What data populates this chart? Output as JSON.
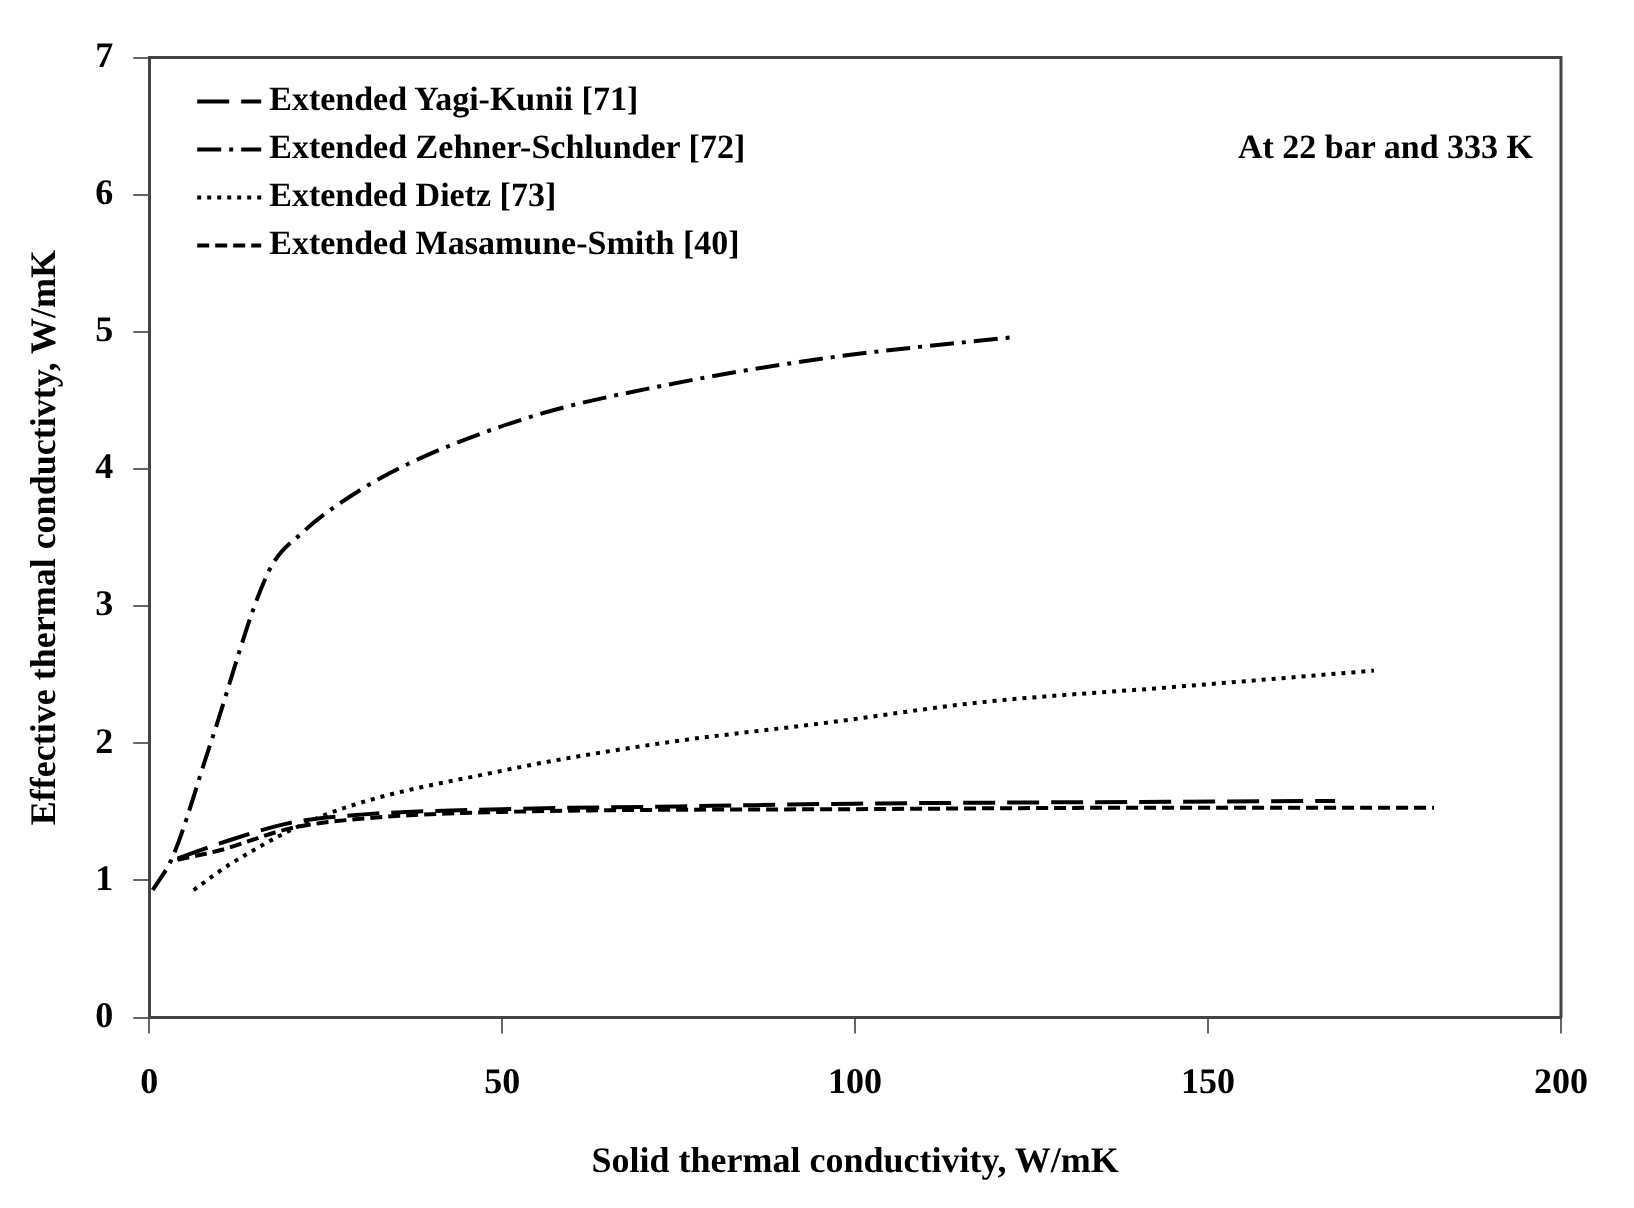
{
  "chart_data": {
    "type": "line",
    "xlabel": "Solid thermal conductivity, W/mK",
    "ylabel": "Effective thermal conductivty, W/mK",
    "xlim": [
      0,
      200
    ],
    "xticks": [
      0,
      50,
      100,
      150,
      200
    ],
    "ylim": [
      0,
      7
    ],
    "yticks": [
      0,
      1,
      2,
      3,
      4,
      5,
      6,
      7
    ],
    "grid": false,
    "legend": "top left",
    "marker": "none",
    "annotations": [
      "At 22 bar and 333 K"
    ],
    "series": [
      {
        "name": "Extended Yagi-Kunii [71]",
        "color": "#000000",
        "line_style": "dashed",
        "x": [
          4,
          10,
          20,
          30,
          50,
          75,
          100,
          130,
          168
        ],
        "values": [
          1.16,
          1.27,
          1.42,
          1.48,
          1.52,
          1.54,
          1.56,
          1.57,
          1.58
        ]
      },
      {
        "name": "Extended Zehner-Schlunder [72]",
        "color": "#000000",
        "line_style": "dashed",
        "x": [
          0.5,
          3.3,
          8.7,
          16.9,
          22,
          27,
          36,
          54,
          72,
          96,
          122
        ],
        "values": [
          0.93,
          1.17,
          2.0,
          3.25,
          3.55,
          3.75,
          4.02,
          4.38,
          4.6,
          4.81,
          4.96
        ]
      },
      {
        "name": "Extended Dietz [73]",
        "color": "#000000",
        "line_style": "dotted",
        "x": [
          6.3,
          11.5,
          25,
          50,
          72.5,
          96,
          118,
          145,
          173.5
        ],
        "values": [
          0.93,
          1.12,
          1.48,
          1.8,
          2.0,
          2.15,
          2.3,
          2.41,
          2.53
        ]
      },
      {
        "name": "Extended Masamune-Smith [40]",
        "color": "#000000",
        "line_style": "dashed",
        "x": [
          4,
          10,
          20,
          30,
          50,
          100,
          140,
          182
        ],
        "values": [
          1.15,
          1.22,
          1.38,
          1.45,
          1.5,
          1.52,
          1.53,
          1.53
        ]
      }
    ]
  }
}
